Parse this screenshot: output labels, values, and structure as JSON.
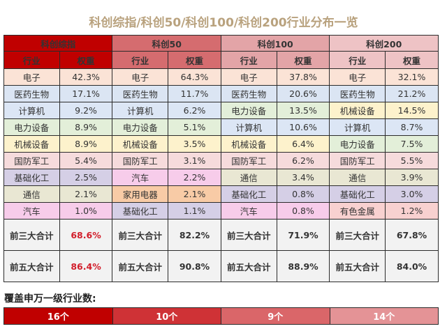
{
  "title": "科创综指/科创50/科创100/科创200行业分布一览",
  "colors": {
    "idx0": "#c00000",
    "idx1": "#d56c6f",
    "idx2": "#e3a4a7",
    "idx3": "#eec3c5",
    "bar0": "#c00000",
    "bar1": "#cf3236",
    "bar2": "#da6669",
    "bar3": "#e49396",
    "highlight_red": "#d21e2b"
  },
  "sector_colors": {
    "电子": "#fbe3d6",
    "医药生物": "#dbe5f3",
    "计算机": "#dce6f5",
    "电力设备": "#e3efd9",
    "机械设备": "#fdf2cc",
    "国防军工": "#f6dbdc",
    "基础化工": "#d5cfe6",
    "通信": "#e9e7d3",
    "汽车": "#f7ccea",
    "家用电器": "#f8cba6",
    "有色金属": "#f8d1d0"
  },
  "col_header": {
    "industry": "行业",
    "weight": "权重"
  },
  "indices": [
    {
      "name": "科创综指",
      "rows": [
        {
          "industry": "电子",
          "weight": "42.3%"
        },
        {
          "industry": "医药生物",
          "weight": "17.1%"
        },
        {
          "industry": "计算机",
          "weight": "9.2%"
        },
        {
          "industry": "电力设备",
          "weight": "8.9%"
        },
        {
          "industry": "机械设备",
          "weight": "8.9%"
        },
        {
          "industry": "国防军工",
          "weight": "5.4%"
        },
        {
          "industry": "基础化工",
          "weight": "2.5%"
        },
        {
          "industry": "通信",
          "weight": "2.1%"
        },
        {
          "industry": "汽车",
          "weight": "1.0%"
        }
      ],
      "top3_label": "前三大合计",
      "top3": "68.6%",
      "top5_label": "前五大合计",
      "top5": "86.4%",
      "coverage": "16个"
    },
    {
      "name": "科创50",
      "rows": [
        {
          "industry": "电子",
          "weight": "64.3%"
        },
        {
          "industry": "医药生物",
          "weight": "11.7%"
        },
        {
          "industry": "计算机",
          "weight": "6.2%"
        },
        {
          "industry": "电力设备",
          "weight": "5.1%"
        },
        {
          "industry": "机械设备",
          "weight": "3.5%"
        },
        {
          "industry": "国防军工",
          "weight": "3.1%"
        },
        {
          "industry": "汽车",
          "weight": "2.2%"
        },
        {
          "industry": "家用电器",
          "weight": "2.1%"
        },
        {
          "industry": "基础化工",
          "weight": "1.1%"
        }
      ],
      "top3_label": "前三大合计",
      "top3": "82.2%",
      "top5_label": "前五大合计",
      "top5": "90.8%",
      "coverage": "10个"
    },
    {
      "name": "科创100",
      "rows": [
        {
          "industry": "电子",
          "weight": "37.8%"
        },
        {
          "industry": "医药生物",
          "weight": "20.6%"
        },
        {
          "industry": "电力设备",
          "weight": "13.5%"
        },
        {
          "industry": "计算机",
          "weight": "10.6%"
        },
        {
          "industry": "机械设备",
          "weight": "6.4%"
        },
        {
          "industry": "国防军工",
          "weight": "6.2%"
        },
        {
          "industry": "通信",
          "weight": "3.4%"
        },
        {
          "industry": "基础化工",
          "weight": "0.8%"
        },
        {
          "industry": "汽车",
          "weight": "0.8%"
        }
      ],
      "top3_label": "前三大合计",
      "top3": "71.9%",
      "top5_label": "前五大合计",
      "top5": "88.9%",
      "coverage": "9个"
    },
    {
      "name": "科创200",
      "rows": [
        {
          "industry": "电子",
          "weight": "32.1%"
        },
        {
          "industry": "医药生物",
          "weight": "21.2%"
        },
        {
          "industry": "机械设备",
          "weight": "14.5%"
        },
        {
          "industry": "计算机",
          "weight": "8.7%"
        },
        {
          "industry": "电力设备",
          "weight": "7.5%"
        },
        {
          "industry": "国防军工",
          "weight": "5.5%"
        },
        {
          "industry": "通信",
          "weight": "3.9%"
        },
        {
          "industry": "基础化工",
          "weight": "3.0%"
        },
        {
          "industry": "有色金属",
          "weight": "1.2%"
        }
      ],
      "top3_label": "前三大合计",
      "top3": "67.8%",
      "top5_label": "前五大合计",
      "top5": "84.0%",
      "coverage": "14个"
    }
  ],
  "coverage_label": "覆盖申万一级行业数:"
}
